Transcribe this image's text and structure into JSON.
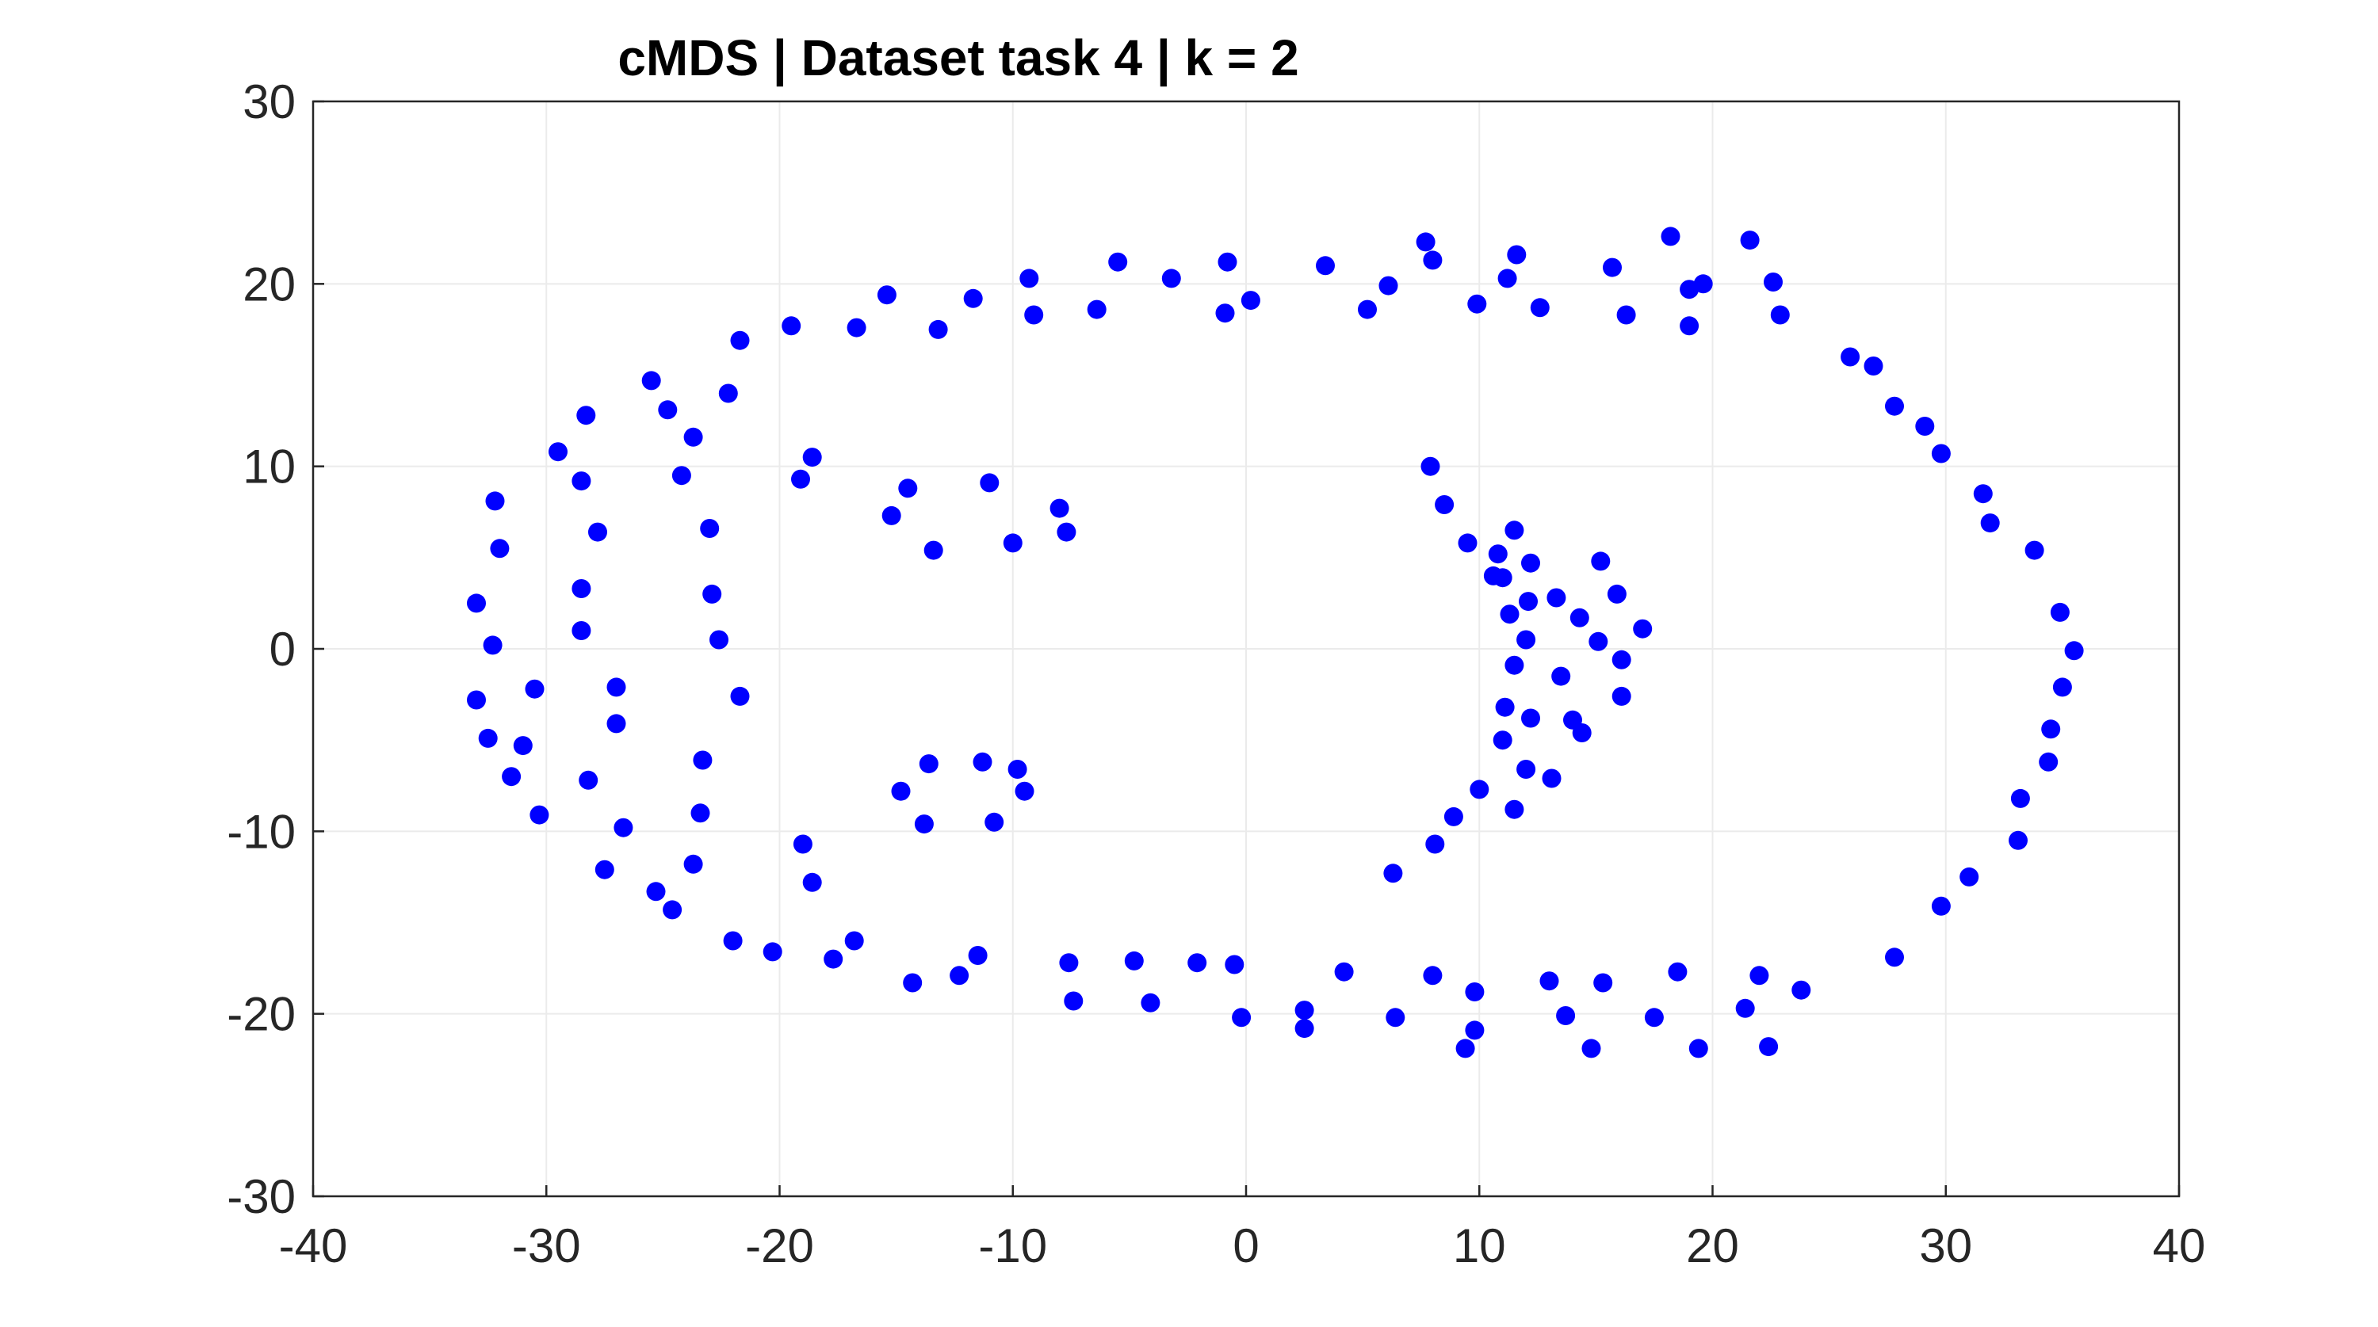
{
  "chart_data": {
    "type": "scatter",
    "title": "cMDS | Dataset task 4 | k = 2",
    "xlabel": "",
    "ylabel": "",
    "xlim": [
      -40,
      40
    ],
    "ylim": [
      -30,
      30
    ],
    "xticks": [
      -40,
      -30,
      -20,
      -10,
      0,
      10,
      20,
      30,
      40
    ],
    "yticks": [
      -30,
      -20,
      -10,
      0,
      10,
      20,
      30
    ],
    "xtick_labels": [
      "-40",
      "-30",
      "-20",
      "-10",
      "0",
      "10",
      "20",
      "30",
      "40"
    ],
    "ytick_labels": [
      "-30",
      "-20",
      "-10",
      "0",
      "10",
      "20",
      "30"
    ],
    "grid": true,
    "marker_color": "#0000ff",
    "series": [
      {
        "points": [
          [
            -33.0,
            -2.8
          ],
          [
            -32.5,
            -4.9
          ],
          [
            -33.0,
            2.5
          ],
          [
            -32.3,
            0.2
          ],
          [
            -32.0,
            5.5
          ],
          [
            -32.2,
            8.1
          ],
          [
            -31.5,
            -7.0
          ],
          [
            -31.0,
            -5.3
          ],
          [
            -30.5,
            -2.2
          ],
          [
            -30.3,
            -9.1
          ],
          [
            -29.5,
            10.8
          ],
          [
            -28.5,
            9.2
          ],
          [
            -28.3,
            12.8
          ],
          [
            -28.5,
            3.3
          ],
          [
            -28.5,
            1.0
          ],
          [
            -28.2,
            -7.2
          ],
          [
            -27.8,
            6.4
          ],
          [
            -27.5,
            -12.1
          ],
          [
            -27.0,
            -2.1
          ],
          [
            -27.0,
            -4.1
          ],
          [
            -26.7,
            -9.8
          ],
          [
            -25.5,
            14.7
          ],
          [
            -25.3,
            -13.3
          ],
          [
            -24.8,
            13.1
          ],
          [
            -24.6,
            -14.3
          ],
          [
            -24.2,
            9.5
          ],
          [
            -23.7,
            11.6
          ],
          [
            -23.7,
            -11.8
          ],
          [
            -23.4,
            -9.0
          ],
          [
            -23.3,
            -6.1
          ],
          [
            -23.0,
            6.6
          ],
          [
            -22.9,
            3.0
          ],
          [
            -22.6,
            0.5
          ],
          [
            -22.2,
            14.0
          ],
          [
            -22.0,
            -16.0
          ],
          [
            -21.7,
            16.9
          ],
          [
            -21.7,
            -2.6
          ],
          [
            -20.3,
            -16.6
          ],
          [
            -19.5,
            17.7
          ],
          [
            -19.1,
            9.3
          ],
          [
            -19.0,
            -10.7
          ],
          [
            -18.6,
            10.5
          ],
          [
            -18.6,
            -12.8
          ],
          [
            -17.7,
            -17.0
          ],
          [
            -16.8,
            -16.0
          ],
          [
            -16.7,
            17.6
          ],
          [
            -15.4,
            19.4
          ],
          [
            -15.2,
            7.3
          ],
          [
            -14.8,
            -7.8
          ],
          [
            -14.5,
            8.8
          ],
          [
            -14.3,
            -18.3
          ],
          [
            -13.8,
            -9.6
          ],
          [
            -13.6,
            -6.3
          ],
          [
            -13.4,
            5.4
          ],
          [
            -13.2,
            17.5
          ],
          [
            -12.3,
            -17.9
          ],
          [
            -11.7,
            19.2
          ],
          [
            -11.5,
            -16.8
          ],
          [
            -11.3,
            -6.2
          ],
          [
            -11.0,
            9.1
          ],
          [
            -10.8,
            -9.5
          ],
          [
            -10.0,
            5.8
          ],
          [
            -9.8,
            -6.6
          ],
          [
            -9.5,
            -7.8
          ],
          [
            -9.3,
            20.3
          ],
          [
            -9.1,
            18.3
          ],
          [
            -8.0,
            7.7
          ],
          [
            -7.7,
            6.4
          ],
          [
            -7.6,
            -17.2
          ],
          [
            -7.4,
            -19.3
          ],
          [
            -6.4,
            18.6
          ],
          [
            -5.5,
            21.2
          ],
          [
            -4.8,
            -17.1
          ],
          [
            -4.1,
            -19.4
          ],
          [
            -3.2,
            20.3
          ],
          [
            -2.1,
            -17.2
          ],
          [
            -0.9,
            18.4
          ],
          [
            -0.8,
            21.2
          ],
          [
            -0.5,
            -17.3
          ],
          [
            -0.2,
            -20.2
          ],
          [
            0.2,
            19.1
          ],
          [
            2.5,
            -19.8
          ],
          [
            2.5,
            -20.8
          ],
          [
            3.4,
            21.0
          ],
          [
            4.2,
            -17.7
          ],
          [
            5.2,
            18.6
          ],
          [
            6.1,
            19.9
          ],
          [
            6.3,
            -12.3
          ],
          [
            6.4,
            -20.2
          ],
          [
            7.7,
            22.3
          ],
          [
            7.9,
            10.0
          ],
          [
            8.0,
            21.3
          ],
          [
            8.1,
            -10.7
          ],
          [
            8.0,
            -17.9
          ],
          [
            8.5,
            7.9
          ],
          [
            8.9,
            -9.2
          ],
          [
            9.4,
            -21.9
          ],
          [
            9.5,
            5.8
          ],
          [
            9.8,
            -20.9
          ],
          [
            9.8,
            -18.8
          ],
          [
            9.9,
            18.9
          ],
          [
            10.0,
            -7.7
          ],
          [
            10.6,
            4.0
          ],
          [
            10.8,
            5.2
          ],
          [
            11.0,
            3.9
          ],
          [
            11.0,
            -5.0
          ],
          [
            11.1,
            -3.2
          ],
          [
            11.2,
            20.3
          ],
          [
            11.3,
            1.9
          ],
          [
            11.5,
            -0.9
          ],
          [
            11.5,
            -8.8
          ],
          [
            11.5,
            6.5
          ],
          [
            11.6,
            21.6
          ],
          [
            12.0,
            0.5
          ],
          [
            12.0,
            -6.6
          ],
          [
            12.1,
            2.6
          ],
          [
            12.2,
            -3.8
          ],
          [
            12.2,
            4.7
          ],
          [
            12.6,
            18.7
          ],
          [
            13.0,
            -18.2
          ],
          [
            13.1,
            -7.1
          ],
          [
            13.3,
            2.8
          ],
          [
            13.5,
            -1.5
          ],
          [
            13.7,
            -20.1
          ],
          [
            14.0,
            -3.9
          ],
          [
            14.3,
            1.7
          ],
          [
            14.4,
            -4.6
          ],
          [
            14.8,
            -21.9
          ],
          [
            15.1,
            0.4
          ],
          [
            15.2,
            4.8
          ],
          [
            15.3,
            -18.3
          ],
          [
            15.7,
            20.9
          ],
          [
            15.9,
            3.0
          ],
          [
            16.1,
            -0.6
          ],
          [
            16.1,
            -2.6
          ],
          [
            16.3,
            18.3
          ],
          [
            17.0,
            1.1
          ],
          [
            17.5,
            -20.2
          ],
          [
            18.2,
            22.6
          ],
          [
            18.5,
            -17.7
          ],
          [
            19.0,
            17.7
          ],
          [
            19.0,
            19.7
          ],
          [
            19.4,
            -21.9
          ],
          [
            19.6,
            20.0
          ],
          [
            21.4,
            -19.7
          ],
          [
            21.6,
            22.4
          ],
          [
            22.0,
            -17.9
          ],
          [
            22.4,
            -21.8
          ],
          [
            22.6,
            20.1
          ],
          [
            22.9,
            18.3
          ],
          [
            23.8,
            -18.7
          ],
          [
            25.9,
            16.0
          ],
          [
            26.9,
            15.5
          ],
          [
            27.8,
            13.3
          ],
          [
            27.8,
            -16.9
          ],
          [
            29.1,
            12.2
          ],
          [
            29.8,
            10.7
          ],
          [
            29.8,
            -14.1
          ],
          [
            31.0,
            -12.5
          ],
          [
            31.6,
            8.5
          ],
          [
            31.9,
            6.9
          ],
          [
            33.1,
            -10.5
          ],
          [
            33.2,
            -8.2
          ],
          [
            33.8,
            5.4
          ],
          [
            34.4,
            -6.2
          ],
          [
            34.5,
            -4.4
          ],
          [
            34.9,
            2.0
          ],
          [
            35.0,
            -2.1
          ],
          [
            35.5,
            -0.1
          ]
        ]
      }
    ]
  }
}
